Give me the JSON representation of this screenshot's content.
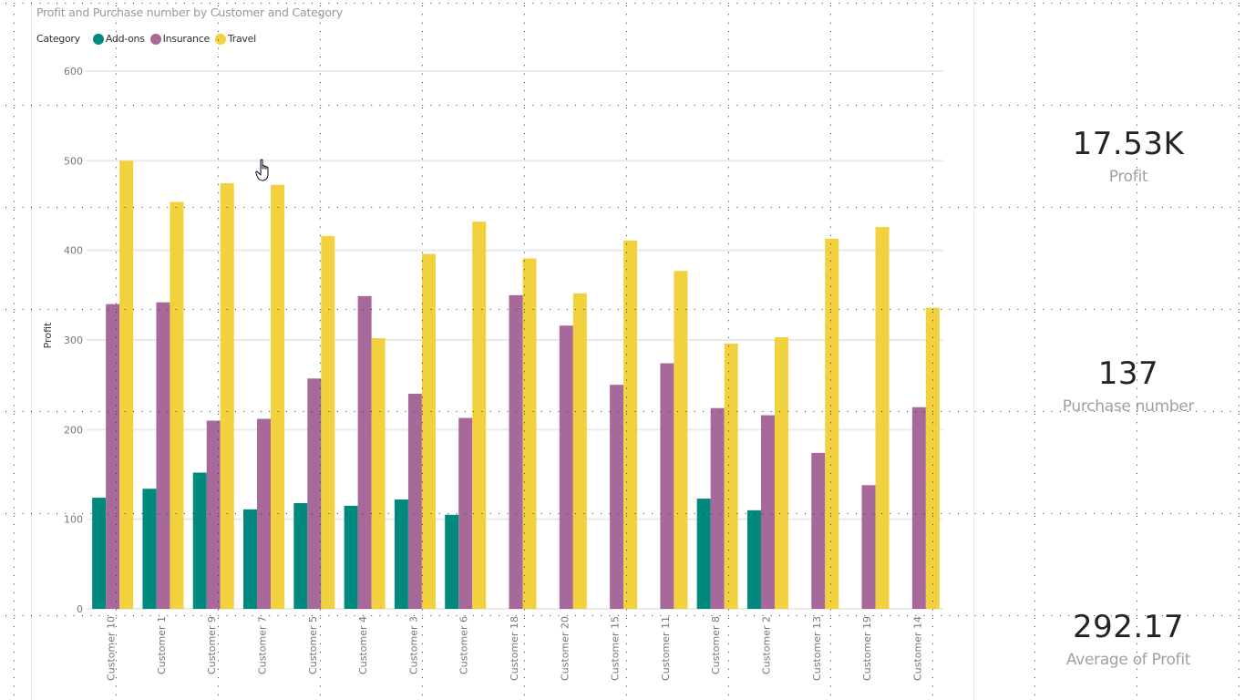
{
  "chart_data": {
    "type": "bar",
    "title": "Profit and Purchase number by Customer and Category",
    "xlabel": "",
    "ylabel": "Profit",
    "ylim": [
      0,
      600
    ],
    "yticks": [
      0,
      100,
      200,
      300,
      400,
      500,
      600
    ],
    "grid": true,
    "legend": {
      "title": "Category",
      "placement": "top-left"
    },
    "categories": [
      "Customer 10",
      "Customer 1",
      "Customer 9",
      "Customer 7",
      "Customer 5",
      "Customer 4",
      "Customer 3",
      "Customer 6",
      "Customer 18",
      "Customer 20",
      "Customer 15",
      "Customer 11",
      "Customer 8",
      "Customer 2",
      "Customer 13",
      "Customer 19",
      "Customer 14"
    ],
    "series": [
      {
        "name": "Add-ons",
        "color": "#01897D",
        "values": [
          124,
          134,
          152,
          111,
          118,
          115,
          122,
          105,
          null,
          null,
          null,
          null,
          123,
          110,
          null,
          null,
          null
        ]
      },
      {
        "name": "Insurance",
        "color": "#A66999",
        "values": [
          340,
          342,
          210,
          212,
          257,
          349,
          240,
          213,
          350,
          316,
          250,
          274,
          224,
          216,
          174,
          138,
          225
        ]
      },
      {
        "name": "Travel",
        "color": "#F2D13E",
        "values": [
          500,
          454,
          475,
          473,
          416,
          302,
          396,
          432,
          391,
          352,
          411,
          377,
          296,
          303,
          413,
          426,
          336
        ]
      }
    ]
  },
  "cards": [
    {
      "value": "17.53K",
      "label": "Profit"
    },
    {
      "value": "137",
      "label": "Purchase number"
    },
    {
      "value": "292.17",
      "label": "Average of Profit"
    }
  ]
}
